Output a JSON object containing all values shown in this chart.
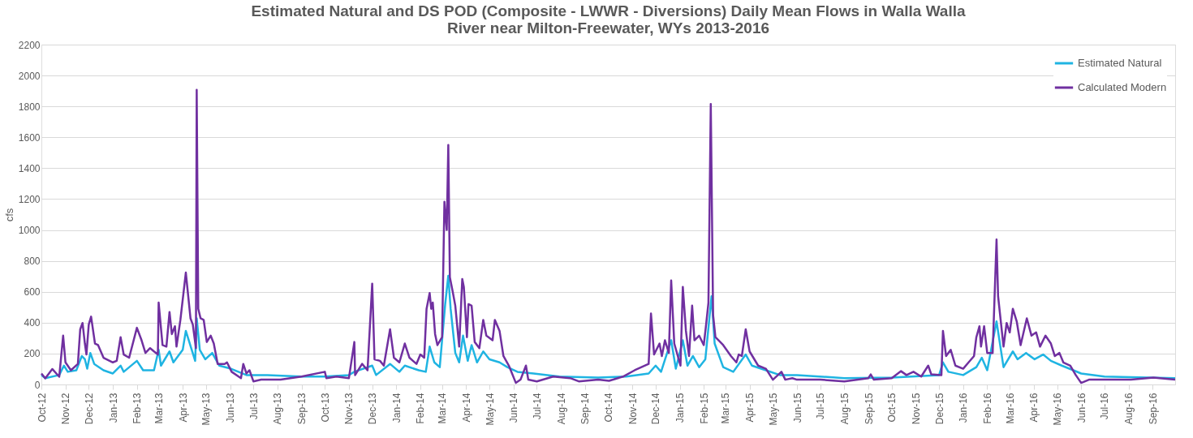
{
  "chart_data": {
    "type": "line",
    "title": "Estimated Natural and DS POD (Composite - LWWR - Diversions) Daily Mean Flows in Walla Walla\nRiver near Milton-Freewater, WYs 2013-2016",
    "ylabel": "cfs",
    "xlim": [
      "2012-10-01",
      "2016-09-30"
    ],
    "ylim": [
      0,
      2200
    ],
    "yticks": [
      0,
      200,
      400,
      600,
      800,
      1000,
      1200,
      1400,
      1600,
      1800,
      2000,
      2200
    ],
    "xticks": [
      {
        "value": "2012-10-01",
        "label": "Oct-12"
      },
      {
        "value": "2012-11-01",
        "label": "Nov-12"
      },
      {
        "value": "2012-12-01",
        "label": "Dec-12"
      },
      {
        "value": "2013-01-01",
        "label": "Jan-13"
      },
      {
        "value": "2013-02-01",
        "label": "Feb-13"
      },
      {
        "value": "2013-03-01",
        "label": "Mar-13"
      },
      {
        "value": "2013-04-01",
        "label": "Apr-13"
      },
      {
        "value": "2013-05-01",
        "label": "May-13"
      },
      {
        "value": "2013-06-01",
        "label": "Jun-13"
      },
      {
        "value": "2013-07-01",
        "label": "Jul-13"
      },
      {
        "value": "2013-08-01",
        "label": "Aug-13"
      },
      {
        "value": "2013-09-01",
        "label": "Sep-13"
      },
      {
        "value": "2013-10-01",
        "label": "Oct-13"
      },
      {
        "value": "2013-11-01",
        "label": "Nov-13"
      },
      {
        "value": "2013-12-01",
        "label": "Dec-13"
      },
      {
        "value": "2014-01-01",
        "label": "Jan-14"
      },
      {
        "value": "2014-02-01",
        "label": "Feb-14"
      },
      {
        "value": "2014-03-01",
        "label": "Mar-14"
      },
      {
        "value": "2014-04-01",
        "label": "Apr-14"
      },
      {
        "value": "2014-05-01",
        "label": "May-14"
      },
      {
        "value": "2014-06-01",
        "label": "Jun-14"
      },
      {
        "value": "2014-07-01",
        "label": "Jul-14"
      },
      {
        "value": "2014-08-01",
        "label": "Aug-14"
      },
      {
        "value": "2014-09-01",
        "label": "Sep-14"
      },
      {
        "value": "2014-10-01",
        "label": "Oct-14"
      },
      {
        "value": "2014-11-01",
        "label": "Nov-14"
      },
      {
        "value": "2014-12-01",
        "label": "Dec-14"
      },
      {
        "value": "2015-01-01",
        "label": "Jan-15"
      },
      {
        "value": "2015-02-01",
        "label": "Feb-15"
      },
      {
        "value": "2015-03-01",
        "label": "Mar-15"
      },
      {
        "value": "2015-04-01",
        "label": "Apr-15"
      },
      {
        "value": "2015-05-01",
        "label": "May-15"
      },
      {
        "value": "2015-06-01",
        "label": "Jun-15"
      },
      {
        "value": "2015-07-01",
        "label": "Jul-15"
      },
      {
        "value": "2015-08-01",
        "label": "Aug-15"
      },
      {
        "value": "2015-09-01",
        "label": "Sep-15"
      },
      {
        "value": "2015-10-01",
        "label": "Oct-15"
      },
      {
        "value": "2015-11-01",
        "label": "Nov-15"
      },
      {
        "value": "2015-12-01",
        "label": "Dec-15"
      },
      {
        "value": "2016-01-01",
        "label": "Jan-16"
      },
      {
        "value": "2016-02-01",
        "label": "Feb-16"
      },
      {
        "value": "2016-03-01",
        "label": "Mar-16"
      },
      {
        "value": "2016-04-01",
        "label": "Apr-16"
      },
      {
        "value": "2016-05-01",
        "label": "May-16"
      },
      {
        "value": "2016-06-01",
        "label": "Jun-16"
      },
      {
        "value": "2016-07-01",
        "label": "Jul-16"
      },
      {
        "value": "2016-08-01",
        "label": "Aug-16"
      },
      {
        "value": "2016-09-01",
        "label": "Sep-16"
      }
    ],
    "grid": "y",
    "legend": "top right",
    "marker": "none",
    "line_style": "solid",
    "series": [
      {
        "name": "Estimated Natural",
        "color": "#1fb4e2",
        "x": [
          "2012-10-01",
          "2012-10-06",
          "2012-10-24",
          "2012-10-30",
          "2012-11-04",
          "2012-11-15",
          "2012-11-22",
          "2012-11-26",
          "2012-11-29",
          "2012-12-03",
          "2012-12-08",
          "2012-12-20",
          "2013-01-01",
          "2013-01-11",
          "2013-01-15",
          "2013-02-01",
          "2013-02-09",
          "2013-02-23",
          "2013-03-01",
          "2013-03-04",
          "2013-03-15",
          "2013-03-20",
          "2013-04-01",
          "2013-04-05",
          "2013-04-17",
          "2013-04-19",
          "2013-04-23",
          "2013-04-30",
          "2013-05-09",
          "2013-05-18",
          "2013-06-02",
          "2013-06-22",
          "2013-07-19",
          "2013-09-01",
          "2013-10-01",
          "2013-11-01",
          "2013-11-08",
          "2013-12-01",
          "2013-12-06",
          "2013-12-24",
          "2014-01-05",
          "2014-01-12",
          "2014-01-30",
          "2014-02-08",
          "2014-02-13",
          "2014-02-19",
          "2014-02-26",
          "2014-03-05",
          "2014-03-09",
          "2014-03-12",
          "2014-03-18",
          "2014-03-23",
          "2014-03-28",
          "2014-04-03",
          "2014-04-08",
          "2014-04-15",
          "2014-04-23",
          "2014-05-01",
          "2014-05-14",
          "2014-05-24",
          "2014-06-06",
          "2014-06-27",
          "2014-07-30",
          "2014-09-18",
          "2014-10-24",
          "2014-11-22",
          "2014-12-01",
          "2014-12-08",
          "2014-12-21",
          "2014-12-27",
          "2015-01-05",
          "2015-01-11",
          "2015-01-18",
          "2015-01-26",
          "2015-02-03",
          "2015-02-11",
          "2015-02-15",
          "2015-02-26",
          "2015-03-11",
          "2015-03-27",
          "2015-04-04",
          "2015-04-22",
          "2015-05-10",
          "2015-05-26",
          "2015-06-01",
          "2015-08-01",
          "2015-10-01",
          "2015-12-01",
          "2015-12-06",
          "2015-12-13",
          "2016-01-01",
          "2016-01-18",
          "2016-01-25",
          "2016-02-01",
          "2016-02-13",
          "2016-02-22",
          "2016-03-05",
          "2016-03-11",
          "2016-03-22",
          "2016-04-02",
          "2016-04-13",
          "2016-04-23",
          "2016-05-07",
          "2016-05-22",
          "2016-06-01",
          "2016-07-01",
          "2016-09-30"
        ],
        "values": [
          61,
          41,
          61,
          122,
          82,
          92,
          184,
          163,
          102,
          204,
          133,
          92,
          71,
          122,
          82,
          153,
          92,
          92,
          224,
          122,
          214,
          143,
          224,
          347,
          153,
          428,
          224,
          163,
          204,
          122,
          102,
          61,
          61,
          51,
          51,
          61,
          82,
          122,
          61,
          133,
          82,
          122,
          92,
          82,
          245,
          143,
          112,
          520,
          704,
          490,
          204,
          143,
          316,
          153,
          255,
          143,
          214,
          163,
          143,
          112,
          82,
          71,
          51,
          45,
          51,
          71,
          122,
          82,
          286,
          102,
          286,
          122,
          184,
          112,
          163,
          571,
          265,
          112,
          82,
          194,
          122,
          92,
          61,
          61,
          61,
          41,
          45,
          61,
          143,
          82,
          61,
          112,
          173,
          92,
          408,
          112,
          214,
          163,
          204,
          163,
          194,
          153,
          122,
          92,
          71,
          51,
          41
        ]
      },
      {
        "name": "Calculated Modern",
        "color": "#7030a0",
        "x": [
          "2012-10-01",
          "2012-10-06",
          "2012-10-15",
          "2012-10-24",
          "2012-10-29",
          "2012-11-01",
          "2012-11-08",
          "2012-11-17",
          "2012-11-20",
          "2012-11-23",
          "2012-11-26",
          "2012-11-28",
          "2012-12-01",
          "2012-12-04",
          "2012-12-09",
          "2012-12-13",
          "2012-12-20",
          "2013-01-01",
          "2013-01-06",
          "2013-01-11",
          "2013-01-15",
          "2013-01-22",
          "2013-02-01",
          "2013-02-07",
          "2013-02-12",
          "2013-02-18",
          "2013-02-23",
          "2013-02-28",
          "2013-03-01",
          "2013-03-06",
          "2013-03-11",
          "2013-03-15",
          "2013-03-18",
          "2013-03-22",
          "2013-03-24",
          "2013-03-29",
          "2013-04-05",
          "2013-04-11",
          "2013-04-14",
          "2013-04-18",
          "2013-04-19",
          "2013-04-21",
          "2013-04-24",
          "2013-04-28",
          "2013-05-02",
          "2013-05-07",
          "2013-05-11",
          "2013-05-16",
          "2013-05-25",
          "2013-05-28",
          "2013-06-03",
          "2013-06-15",
          "2013-06-18",
          "2013-06-22",
          "2013-06-26",
          "2013-07-01",
          "2013-07-11",
          "2013-08-05",
          "2013-09-01",
          "2013-10-01",
          "2013-10-03",
          "2013-10-16",
          "2013-11-01",
          "2013-11-08",
          "2013-11-09",
          "2013-11-18",
          "2013-11-25",
          "2013-12-01",
          "2013-12-04",
          "2013-12-11",
          "2013-12-16",
          "2013-12-24",
          "2013-12-29",
          "2014-01-05",
          "2014-01-12",
          "2014-01-18",
          "2014-01-27",
          "2014-02-01",
          "2014-02-06",
          "2014-02-09",
          "2014-02-13",
          "2014-02-15",
          "2014-02-17",
          "2014-02-20",
          "2014-02-23",
          "2014-03-01",
          "2014-03-04",
          "2014-03-07",
          "2014-03-09",
          "2014-03-11",
          "2014-03-15",
          "2014-03-18",
          "2014-03-23",
          "2014-03-27",
          "2014-03-29",
          "2014-04-02",
          "2014-04-04",
          "2014-04-08",
          "2014-04-12",
          "2014-04-18",
          "2014-04-23",
          "2014-04-27",
          "2014-05-05",
          "2014-05-08",
          "2014-05-14",
          "2014-05-19",
          "2014-05-26",
          "2014-06-04",
          "2014-06-10",
          "2014-06-17",
          "2014-06-20",
          "2014-07-01",
          "2014-07-22",
          "2014-08-13",
          "2014-08-24",
          "2014-09-18",
          "2014-10-02",
          "2014-10-20",
          "2014-11-04",
          "2014-11-22",
          "2014-11-25",
          "2014-11-29",
          "2014-12-06",
          "2014-12-09",
          "2014-12-13",
          "2014-12-18",
          "2014-12-21",
          "2014-12-25",
          "2015-01-02",
          "2015-01-05",
          "2015-01-09",
          "2015-01-13",
          "2015-01-17",
          "2015-01-20",
          "2015-01-26",
          "2015-02-01",
          "2015-02-04",
          "2015-02-07",
          "2015-02-10",
          "2015-02-13",
          "2015-02-16",
          "2015-02-26",
          "2015-03-08",
          "2015-03-15",
          "2015-03-18",
          "2015-03-22",
          "2015-03-27",
          "2015-04-01",
          "2015-04-12",
          "2015-04-22",
          "2015-05-01",
          "2015-05-12",
          "2015-05-17",
          "2015-05-26",
          "2015-06-01",
          "2015-07-01",
          "2015-08-01",
          "2015-09-01",
          "2015-09-04",
          "2015-09-08",
          "2015-10-01",
          "2015-10-13",
          "2015-10-20",
          "2015-10-29",
          "2015-11-08",
          "2015-11-17",
          "2015-11-21",
          "2015-12-04",
          "2015-12-06",
          "2015-12-10",
          "2015-12-16",
          "2015-12-22",
          "2016-01-01",
          "2016-01-08",
          "2016-01-15",
          "2016-01-18",
          "2016-01-22",
          "2016-01-24",
          "2016-01-28",
          "2016-02-01",
          "2016-02-08",
          "2016-02-13",
          "2016-02-15",
          "2016-02-22",
          "2016-02-26",
          "2016-03-01",
          "2016-03-05",
          "2016-03-10",
          "2016-03-15",
          "2016-03-23",
          "2016-03-29",
          "2016-04-04",
          "2016-04-09",
          "2016-04-16",
          "2016-04-23",
          "2016-04-28",
          "2016-05-04",
          "2016-05-09",
          "2016-05-18",
          "2016-05-25",
          "2016-06-01",
          "2016-06-11",
          "2016-07-01",
          "2016-08-04",
          "2016-09-02",
          "2016-09-30"
        ],
        "values": [
          71,
          40,
          100,
          50,
          316,
          143,
          92,
          133,
          357,
          398,
          265,
          194,
          388,
          439,
          265,
          255,
          173,
          143,
          153,
          306,
          194,
          173,
          367,
          286,
          204,
          235,
          214,
          194,
          530,
          255,
          245,
          469,
          326,
          377,
          245,
          418,
          724,
          428,
          388,
          235,
          1907,
          490,
          428,
          418,
          275,
          316,
          265,
          133,
          133,
          143,
          82,
          41,
          133,
          71,
          92,
          20,
          31,
          31,
          51,
          82,
          41,
          51,
          41,
          275,
          61,
          133,
          92,
          653,
          163,
          153,
          122,
          357,
          173,
          143,
          265,
          173,
          133,
          194,
          173,
          490,
          592,
          490,
          530,
          326,
          255,
          306,
          1183,
          1000,
          1550,
          694,
          592,
          510,
          245,
          683,
          632,
          306,
          520,
          510,
          275,
          235,
          418,
          316,
          286,
          418,
          347,
          184,
          122,
          10,
          31,
          122,
          31,
          20,
          51,
          41,
          20,
          31,
          24,
          51,
          92,
          133,
          459,
          194,
          265,
          184,
          286,
          204,
          673,
          265,
          122,
          632,
          347,
          184,
          510,
          286,
          316,
          255,
          388,
          530,
          1816,
          449,
          306,
          255,
          184,
          143,
          194,
          184,
          357,
          214,
          122,
          102,
          31,
          82,
          31,
          41,
          31,
          31,
          20,
          41,
          65,
          31,
          41,
          86,
          61,
          82,
          51,
          122,
          65,
          61,
          347,
          184,
          224,
          122,
          102,
          143,
          184,
          306,
          377,
          245,
          377,
          204,
          204,
          938,
          571,
          245,
          398,
          337,
          490,
          408,
          255,
          428,
          316,
          337,
          245,
          316,
          265,
          184,
          204,
          143,
          122,
          61,
          10,
          31,
          31,
          31,
          45,
          31
        ]
      }
    ]
  }
}
